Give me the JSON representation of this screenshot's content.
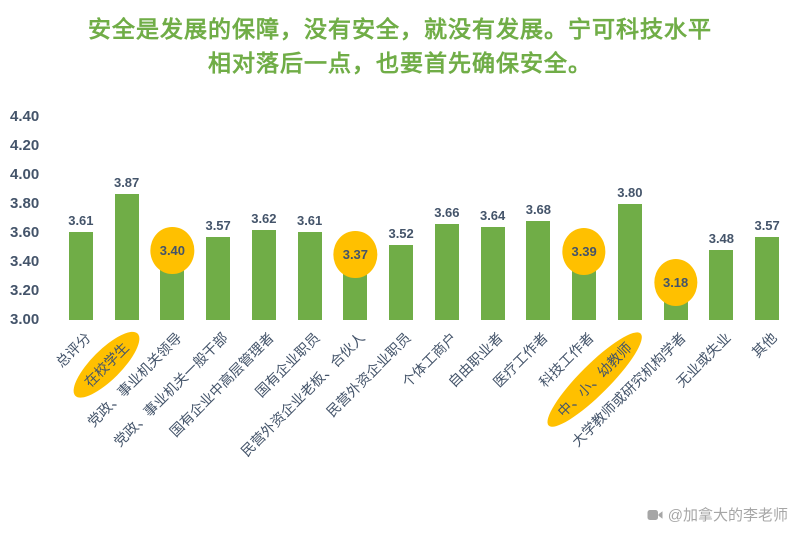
{
  "title": {
    "line1": "安全是发展的保障，没有安全，就没有发展。宁可科技水平",
    "line2": "相对落后一点，也要首先确保安全。"
  },
  "watermark": {
    "text": "@加拿大的李老师",
    "icon": "video-camera-icon"
  },
  "colors": {
    "bar": "#70AD47",
    "title": "#70AD47",
    "label": "#44546A",
    "highlight": "#FFC000",
    "watermark": "#A6A6A6"
  },
  "chart_data": {
    "type": "bar",
    "title": "安全是发展的保障，没有安全，就没有发展。宁可科技水平相对落后一点，也要首先确保安全。",
    "categories": [
      "总评分",
      "在校学生",
      "党政、事业机关领导",
      "党政、事业机关一般干部",
      "国有企业中高层管理者",
      "国有企业职员",
      "民营外资企业老板、合伙人",
      "民营外资企业职员",
      "个体工商户",
      "自由职业者",
      "医疗工作者",
      "科技工作者",
      "中、小、幼教师",
      "大学教师或研究机构学者",
      "无业或失业",
      "其他"
    ],
    "values": [
      3.61,
      3.87,
      3.4,
      3.57,
      3.62,
      3.61,
      3.37,
      3.52,
      3.66,
      3.64,
      3.68,
      3.39,
      3.8,
      3.18,
      3.48,
      3.57
    ],
    "xlabel": "",
    "ylabel": "",
    "ylim": [
      3.0,
      4.4
    ],
    "yticks": [
      3.0,
      3.2,
      3.4,
      3.6,
      3.8,
      4.0,
      4.2,
      4.4
    ],
    "grid": false,
    "legend": false,
    "value_labels": true,
    "highlights": {
      "value_indices": [
        2,
        6,
        11,
        13
      ],
      "category_indices": [
        1,
        12
      ],
      "style": "yellow-circle"
    }
  }
}
